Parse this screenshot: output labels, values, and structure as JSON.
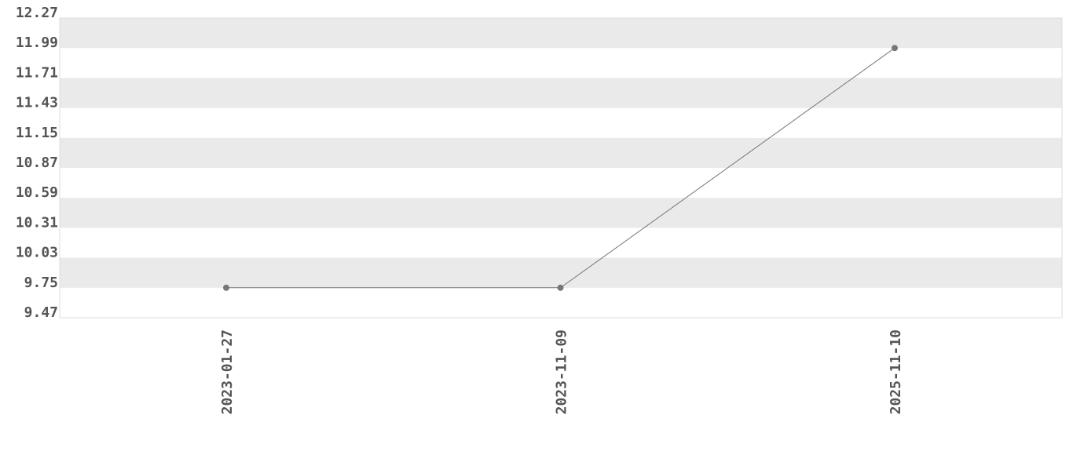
{
  "chart_data": {
    "type": "line",
    "title": "",
    "xlabel": "",
    "ylabel": "",
    "categories": [
      "2023-01-27",
      "2023-11-09",
      "2025-11-10"
    ],
    "series": [
      {
        "values": [
          9.75,
          9.75,
          11.99
        ]
      }
    ],
    "ylim": [
      9.47,
      12.27
    ],
    "yticks": [
      "9.47",
      "9.75",
      "10.03",
      "10.31",
      "10.59",
      "10.87",
      "11.15",
      "11.43",
      "11.71",
      "11.99",
      "12.27"
    ],
    "grid": "alternating horizontal bands",
    "colors": {
      "line": "#777777",
      "marker": "#777777",
      "band": "#eaeaea",
      "text": "#555555",
      "border": "#dddddd"
    }
  }
}
